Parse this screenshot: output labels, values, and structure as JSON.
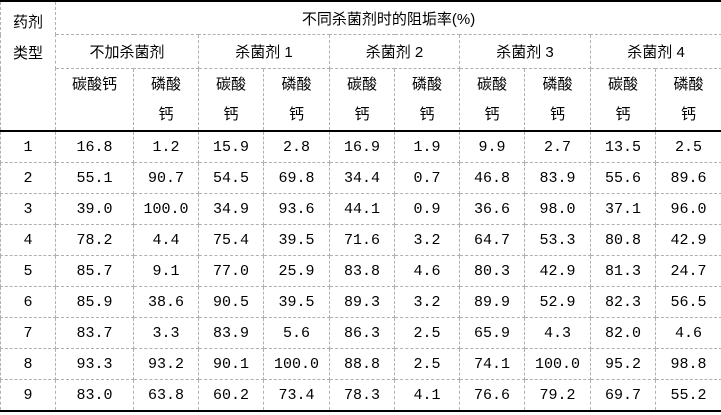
{
  "table": {
    "corner_header": "药剂\n类型",
    "title": "不同杀菌剂时的阻垢率(%)",
    "groups": [
      "不加杀菌剂",
      "杀菌剂 1",
      "杀菌剂 2",
      "杀菌剂 3",
      "杀菌剂 4"
    ],
    "sub_headers": [
      "碳酸钙",
      "磷酸\n钙",
      "碳酸\n钙",
      "磷酸\n钙",
      "碳酸\n钙",
      "磷酸\n钙",
      "碳酸\n钙",
      "磷酸\n钙",
      "碳酸\n钙",
      "磷酸\n钙"
    ],
    "rows": [
      {
        "label": "1",
        "values": [
          "16.8",
          "1.2",
          "15.9",
          "2.8",
          "16.9",
          "1.9",
          "9.9",
          "2.7",
          "13.5",
          "2.5"
        ]
      },
      {
        "label": "2",
        "values": [
          "55.1",
          "90.7",
          "54.5",
          "69.8",
          "34.4",
          "0.7",
          "46.8",
          "83.9",
          "55.6",
          "89.6"
        ]
      },
      {
        "label": "3",
        "values": [
          "39.0",
          "100.0",
          "34.9",
          "93.6",
          "44.1",
          "0.9",
          "36.6",
          "98.0",
          "37.1",
          "96.0"
        ]
      },
      {
        "label": "4",
        "values": [
          "78.2",
          "4.4",
          "75.4",
          "39.5",
          "71.6",
          "3.2",
          "64.7",
          "53.3",
          "80.8",
          "42.9"
        ]
      },
      {
        "label": "5",
        "values": [
          "85.7",
          "9.1",
          "77.0",
          "25.9",
          "83.8",
          "4.6",
          "80.3",
          "42.9",
          "81.3",
          "24.7"
        ]
      },
      {
        "label": "6",
        "values": [
          "85.9",
          "38.6",
          "90.5",
          "39.5",
          "89.3",
          "3.2",
          "89.9",
          "52.9",
          "82.3",
          "56.5"
        ]
      },
      {
        "label": "7",
        "values": [
          "83.7",
          "3.3",
          "83.9",
          "5.6",
          "86.3",
          "2.5",
          "65.9",
          "4.3",
          "82.0",
          "4.6"
        ]
      },
      {
        "label": "8",
        "values": [
          "93.3",
          "93.2",
          "90.1",
          "100.0",
          "88.8",
          "2.5",
          "74.1",
          "100.0",
          "95.2",
          "98.8"
        ]
      },
      {
        "label": "9",
        "values": [
          "83.0",
          "63.8",
          "60.2",
          "73.4",
          "78.3",
          "4.1",
          "76.6",
          "79.2",
          "69.7",
          "55.2"
        ]
      }
    ]
  },
  "colors": {
    "background": "#ffffff",
    "text": "#000000",
    "rule_strong": "#000000",
    "rule_dashed": "#b0b0b0"
  }
}
